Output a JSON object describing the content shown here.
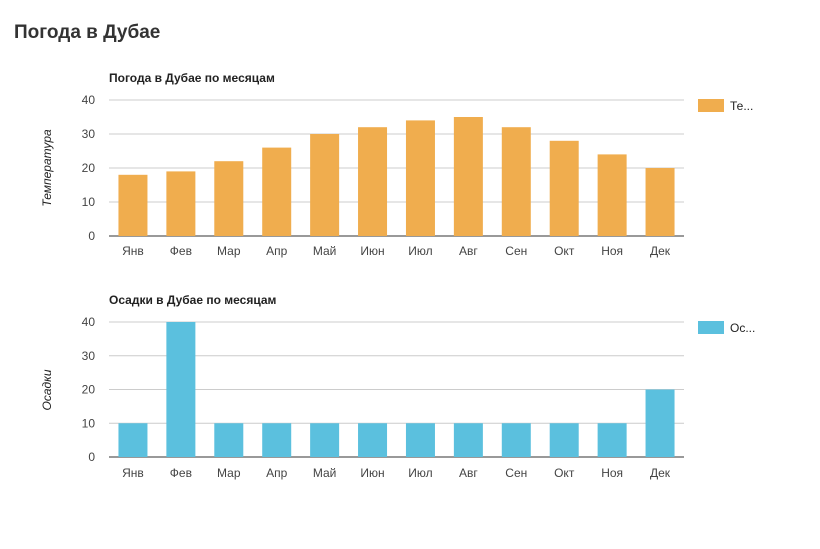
{
  "page": {
    "title": "Погода в Дубае"
  },
  "chart_data": [
    {
      "type": "bar",
      "title": "Погода в Дубае по месяцам",
      "ylabel": "Температура",
      "xlabel": "",
      "ylim": [
        0,
        40
      ],
      "yticks": [
        0,
        10,
        20,
        30,
        40
      ],
      "grid": true,
      "legend_position": "right",
      "color": "#f0ad4e",
      "categories": [
        "Янв",
        "Фев",
        "Мар",
        "Апр",
        "Май",
        "Июн",
        "Июл",
        "Авг",
        "Сен",
        "Окт",
        "Ноя",
        "Дек"
      ],
      "series": [
        {
          "name": "Те...",
          "values": [
            18,
            19,
            22,
            26,
            30,
            32,
            34,
            35,
            32,
            28,
            24,
            20
          ]
        }
      ]
    },
    {
      "type": "bar",
      "title": "Осадки в Дубае по месяцам",
      "ylabel": "Осадки",
      "xlabel": "",
      "ylim": [
        0,
        40
      ],
      "yticks": [
        0,
        10,
        20,
        30,
        40
      ],
      "grid": true,
      "legend_position": "right",
      "color": "#5bc0de",
      "categories": [
        "Янв",
        "Фев",
        "Мар",
        "Апр",
        "Май",
        "Июн",
        "Июл",
        "Авг",
        "Сен",
        "Окт",
        "Ноя",
        "Дек"
      ],
      "series": [
        {
          "name": "Ос...",
          "values": [
            10,
            40,
            10,
            10,
            10,
            10,
            10,
            10,
            10,
            10,
            10,
            20
          ]
        }
      ]
    }
  ]
}
